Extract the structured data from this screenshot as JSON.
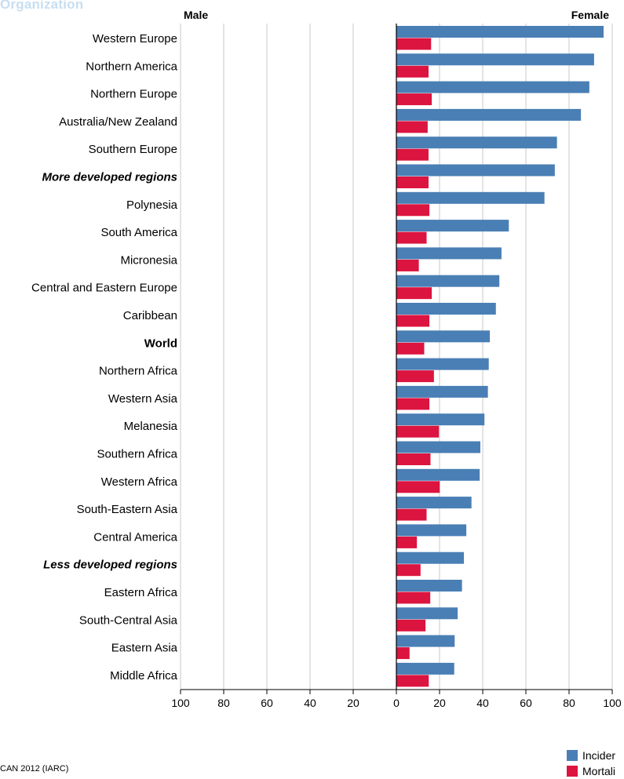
{
  "header": {
    "organization": "Organization",
    "male_label": "Male",
    "female_label": "Female"
  },
  "footer": {
    "source": "CAN 2012 (IARC)"
  },
  "colors": {
    "incidence": "#4a7fb5",
    "mortality": "#dc1440",
    "grid": "#c8c8c8",
    "axis": "#000000"
  },
  "legend": {
    "items": [
      {
        "label": "Incider",
        "color": "#4a7fb5"
      },
      {
        "label": "Mortali",
        "color": "#dc1440"
      }
    ]
  },
  "chart_data": {
    "type": "bar",
    "orientation": "horizontal",
    "xlim": [
      -100,
      100
    ],
    "x_ticks": [
      100,
      80,
      60,
      40,
      20,
      0,
      20,
      40,
      60,
      80,
      100
    ],
    "grid": true,
    "categories": [
      "Western Europe",
      "Northern America",
      "Northern Europe",
      "Australia/New Zealand",
      "Southern Europe",
      "More developed regions",
      "Polynesia",
      "South America",
      "Micronesia",
      "Central and Eastern Europe",
      "Caribbean",
      "World",
      "Northern Africa",
      "Western Asia",
      "Melanesia",
      "Southern Africa",
      "Western Africa",
      "South-Eastern Asia",
      "Central America",
      "Less developed regions",
      "Eastern Africa",
      "South-Central Asia",
      "Eastern Asia",
      "Middle Africa"
    ],
    "category_styles": {
      "More developed regions": "bold-italic",
      "World": "bold",
      "Less developed regions": "bold-italic"
    },
    "series": [
      {
        "side": "female",
        "values": [
          96.0,
          91.6,
          89.4,
          85.5,
          74.4,
          73.4,
          68.6,
          52.1,
          48.7,
          47.7,
          46.1,
          43.3,
          42.8,
          42.4,
          40.8,
          38.9,
          38.6,
          34.8,
          32.4,
          31.3,
          30.4,
          28.4,
          27.0,
          26.8
        ]
      },
      {
        "side": "female",
        "values": [
          16.1,
          14.9,
          16.4,
          14.5,
          14.9,
          14.9,
          15.3,
          14.0,
          10.4,
          16.4,
          15.3,
          12.9,
          17.4,
          15.3,
          19.7,
          15.8,
          20.1,
          14.0,
          9.5,
          11.2,
          15.7,
          13.5,
          6.1,
          15.0
        ]
      }
    ]
  }
}
